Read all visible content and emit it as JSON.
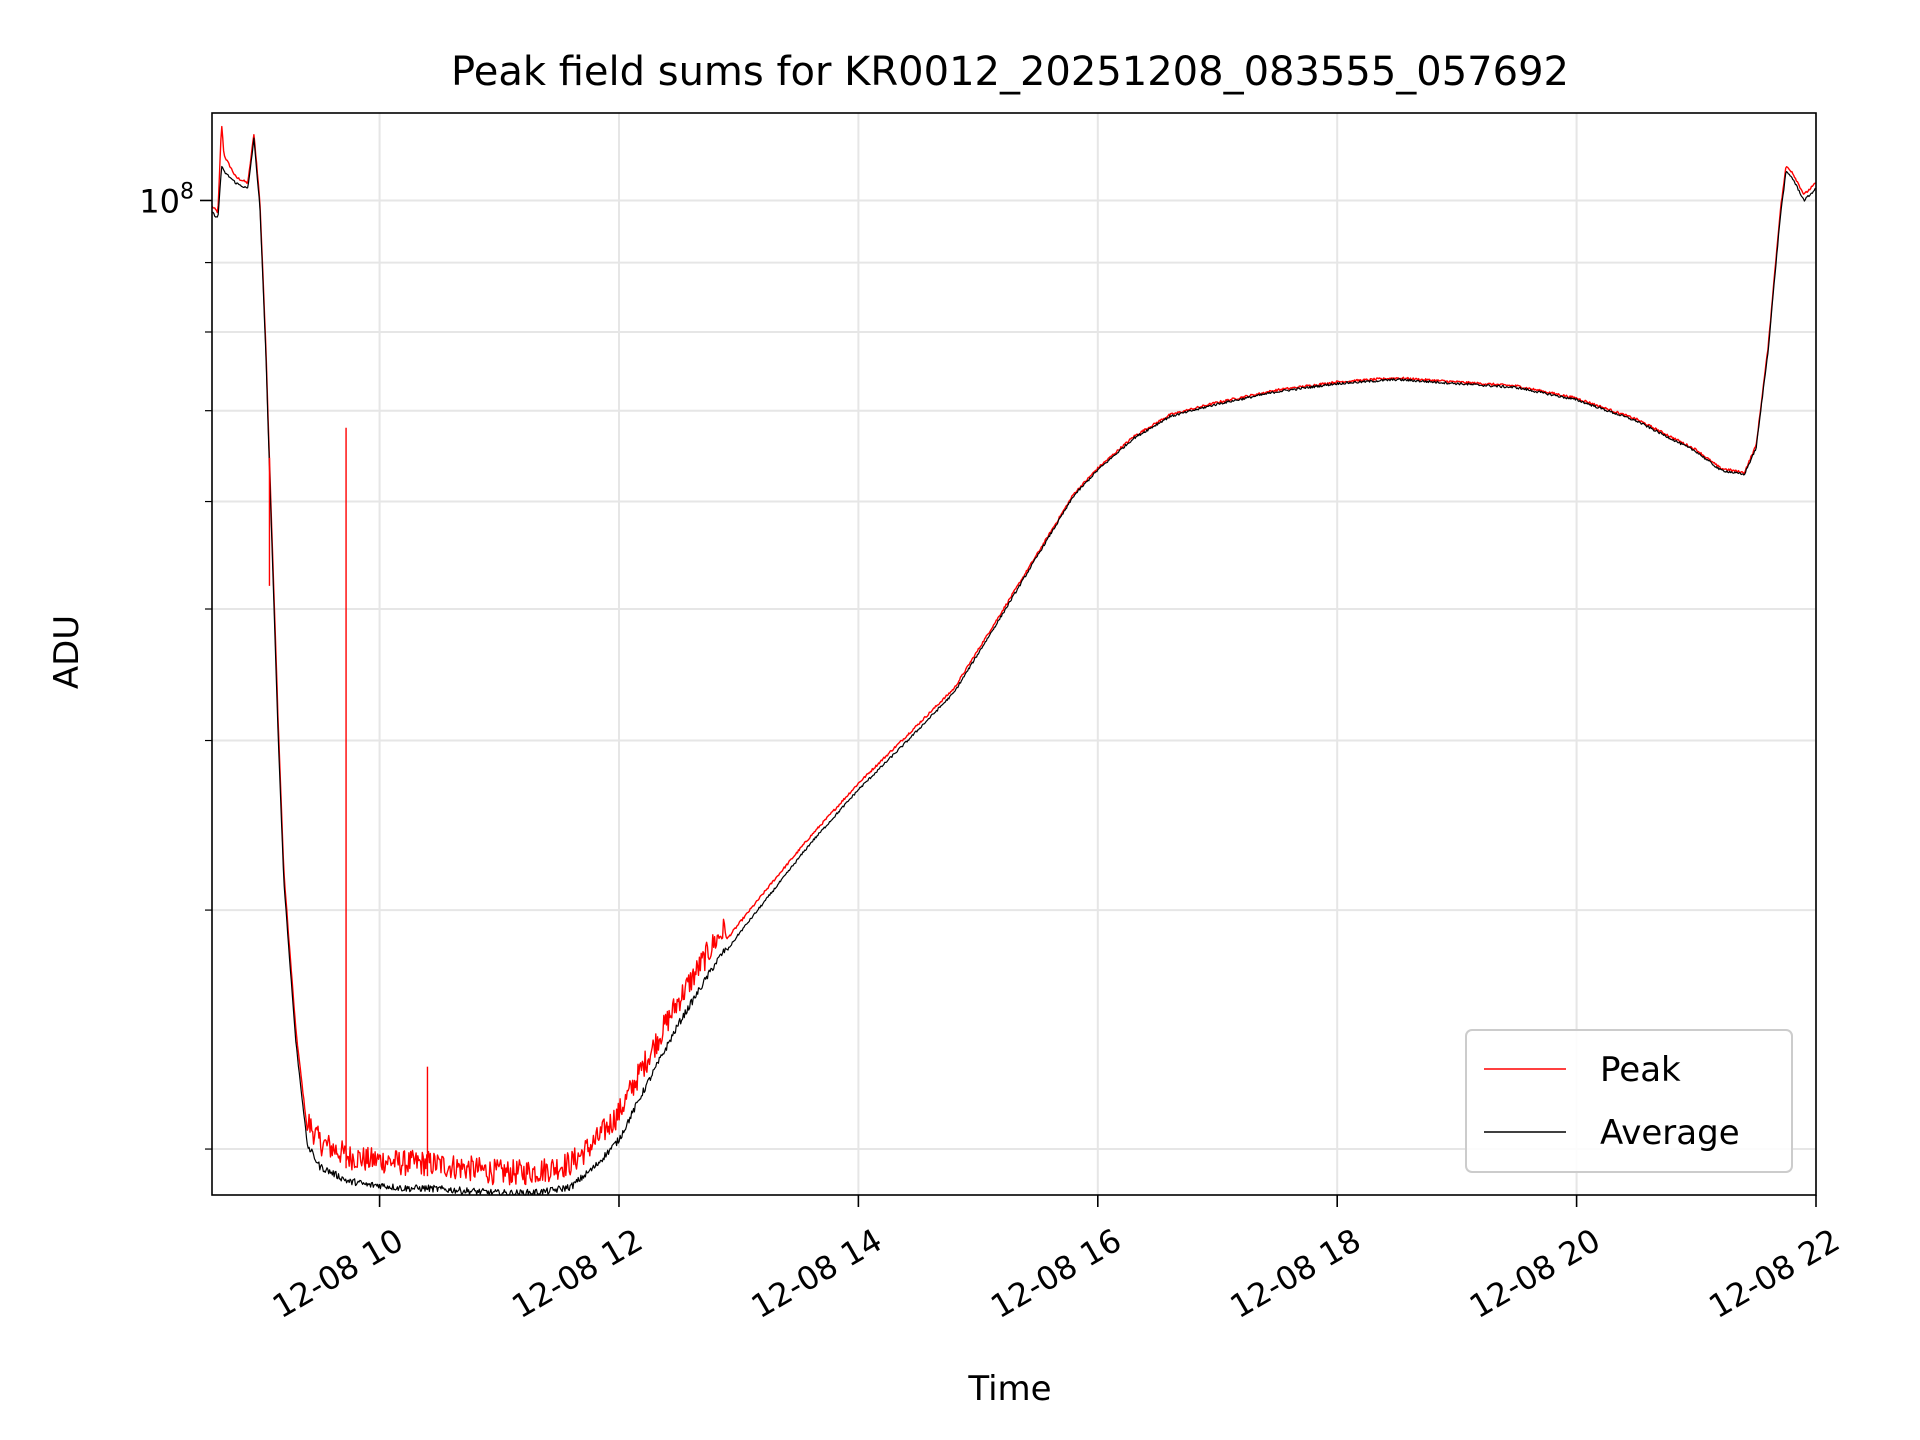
{
  "chart_data": {
    "type": "line",
    "title": "Peak field sums for KR0012_20251208_083555_057692",
    "xlabel": "Time",
    "ylabel": "ADU",
    "xlim": [
      8.6,
      22.0
    ],
    "ylim": [
      18500000,
      116000000
    ],
    "yscale": "log",
    "grid": true,
    "legend_position": "lower-right",
    "x_ticks": [
      {
        "value": 10,
        "label": "12-08 10"
      },
      {
        "value": 12,
        "label": "12-08 12"
      },
      {
        "value": 14,
        "label": "12-08 14"
      },
      {
        "value": 16,
        "label": "12-08 16"
      },
      {
        "value": 18,
        "label": "12-08 18"
      },
      {
        "value": 20,
        "label": "12-08 20"
      },
      {
        "value": 22,
        "label": "12-08 22"
      }
    ],
    "y_ticks_major": [
      {
        "value": 100000000,
        "base": "10",
        "exp": "8"
      }
    ],
    "y_ticks_minor": [
      20000000,
      30000000,
      40000000,
      50000000,
      60000000,
      70000000,
      80000000,
      90000000
    ],
    "series": [
      {
        "name": "Peak",
        "color": "#ff0000",
        "x": [
          8.6,
          8.65,
          8.68,
          8.7,
          8.75,
          8.8,
          8.9,
          8.95,
          9.0,
          9.05,
          9.1,
          9.15,
          9.2,
          9.3,
          9.4,
          9.5,
          9.6,
          9.7,
          9.75,
          9.8,
          9.9,
          10.0,
          10.2,
          10.4,
          10.6,
          10.8,
          11.0,
          11.2,
          11.4,
          11.6,
          11.8,
          12.0,
          12.2,
          12.5,
          12.8,
          13.0,
          13.3,
          13.6,
          14.0,
          14.4,
          14.8,
          15.2,
          15.5,
          15.8,
          16.0,
          16.3,
          16.6,
          17.0,
          17.5,
          18.0,
          18.5,
          19.0,
          19.5,
          20.0,
          20.5,
          21.0,
          21.2,
          21.4,
          21.5,
          21.6,
          21.7,
          21.75,
          21.8,
          21.9,
          22.0
        ],
        "y": [
          99000000,
          98000000,
          114000000,
          108000000,
          106000000,
          104000000,
          103000000,
          112000000,
          100000000,
          78000000,
          57000000,
          42000000,
          32000000,
          24500000,
          20500000,
          19800000,
          19600000,
          19400000,
          19300000,
          19300000,
          19200000,
          19200000,
          19100000,
          19100000,
          19000000,
          18900000,
          18800000,
          18800000,
          18900000,
          19100000,
          19800000,
          20800000,
          22500000,
          25200000,
          27800000,
          29300000,
          31600000,
          34000000,
          37200000,
          40300000,
          43700000,
          49800000,
          55000000,
          60800000,
          63500000,
          67000000,
          69500000,
          71000000,
          72500000,
          73500000,
          74000000,
          73500000,
          73000000,
          71500000,
          69000000,
          65500000,
          63500000,
          63000000,
          66000000,
          78000000,
          98000000,
          106000000,
          105000000,
          101000000,
          103000000
        ]
      },
      {
        "name": "Average",
        "color": "#000000",
        "x": [
          8.6,
          8.65,
          8.68,
          8.7,
          8.75,
          8.8,
          8.9,
          8.95,
          9.0,
          9.05,
          9.1,
          9.15,
          9.2,
          9.3,
          9.4,
          9.5,
          9.6,
          9.7,
          9.75,
          9.8,
          9.9,
          10.0,
          10.2,
          10.4,
          10.6,
          10.8,
          11.0,
          11.2,
          11.4,
          11.6,
          11.8,
          12.0,
          12.2,
          12.5,
          12.8,
          13.0,
          13.3,
          13.6,
          14.0,
          14.4,
          14.8,
          15.2,
          15.5,
          15.8,
          16.0,
          16.3,
          16.6,
          17.0,
          17.5,
          18.0,
          18.5,
          19.0,
          19.5,
          20.0,
          20.5,
          21.0,
          21.2,
          21.4,
          21.5,
          21.6,
          21.7,
          21.75,
          21.8,
          21.9,
          22.0
        ],
        "y": [
          98000000,
          97000000,
          106000000,
          105000000,
          104000000,
          103000000,
          102000000,
          111000000,
          99000000,
          77000000,
          56000000,
          41000000,
          31500000,
          24000000,
          20000000,
          19300000,
          19100000,
          18900000,
          18800000,
          18800000,
          18700000,
          18700000,
          18600000,
          18600000,
          18550000,
          18500000,
          18450000,
          18450000,
          18500000,
          18650000,
          19300000,
          20200000,
          21900000,
          24600000,
          27200000,
          28800000,
          31100000,
          33600000,
          36800000,
          39900000,
          43400000,
          49500000,
          54800000,
          60600000,
          63300000,
          66800000,
          69300000,
          70800000,
          72300000,
          73300000,
          73800000,
          73300000,
          72800000,
          71300000,
          68800000,
          65300000,
          63300000,
          62800000,
          65700000,
          77500000,
          97000000,
          105000000,
          104000000,
          100000000,
          102000000
        ]
      }
    ],
    "annotations": [
      {
        "series": "Peak",
        "x": 9.72,
        "y": 68000000,
        "note": "spike"
      },
      {
        "series": "Peak",
        "x": 10.4,
        "y": 23000000,
        "note": "spike"
      },
      {
        "series": "Peak",
        "x": 9.08,
        "y": 52000000,
        "note": "spike"
      }
    ]
  }
}
